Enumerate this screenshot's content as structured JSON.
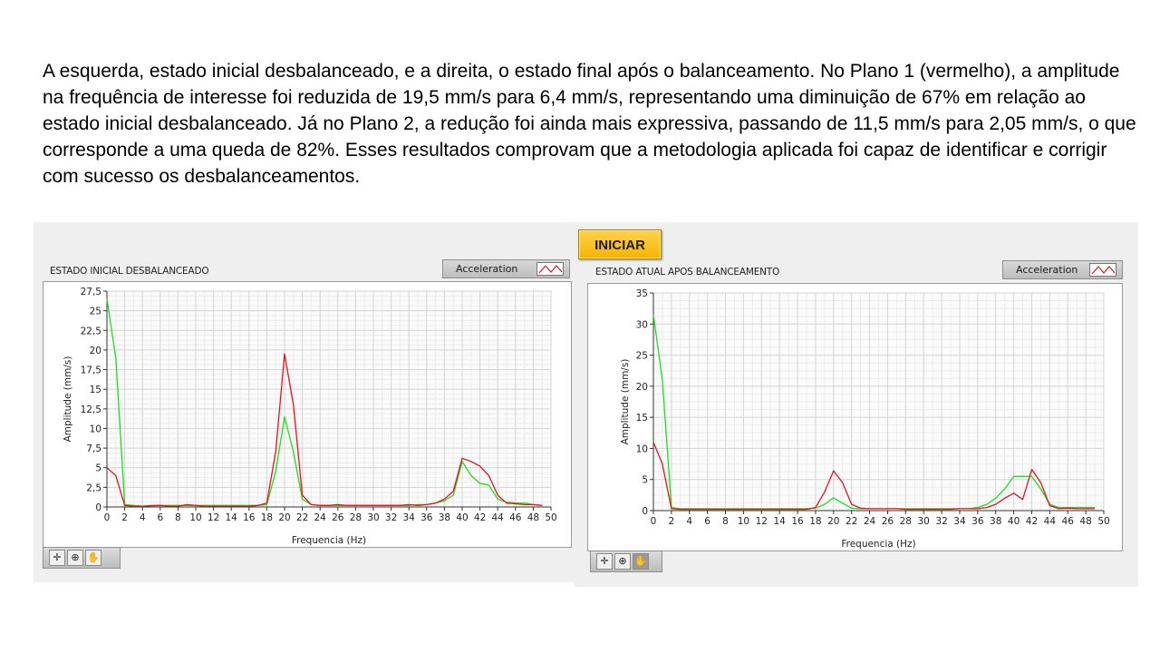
{
  "paragraph": "A esquerda, estado inicial desbalanceado, e a direita, o estado final após o balanceamento. No Plano 1 (vermelho), a amplitude na frequência de interesse foi reduzida de 19,5 mm/s para 6,4 mm/s, representando uma diminuição de 67% em relação ao estado inicial desbalanceado. Já no Plano 2, a redução foi ainda mais expressiva, passando de 11,5 mm/s para 2,05 mm/s, o que corresponde a uma queda de 82%. Esses resultados comprovam que a metodologia aplicada foi capaz de identificar e corrigir com sucesso os desbalanceamentos.",
  "start_button": "INICIAR",
  "left_graph": {
    "title": "ESTADO INICIAL DESBALANCEADO",
    "legend_label": "Acceleration"
  },
  "right_graph": {
    "title": "ESTADO ATUAL APOS BALANCEAMENTO",
    "legend_label": "Acceleration"
  },
  "palette_icons": [
    "crosshair-icon",
    "zoom-icon",
    "pan-hand-icon"
  ],
  "colors": {
    "plane1": "#e8121b",
    "plane2": "#19e019",
    "button": "#f5b400"
  },
  "chart_data": [
    {
      "type": "line",
      "title": "ESTADO INICIAL DESBALANCEADO",
      "xlabel": "Frequencia (Hz)",
      "ylabel": "Amplitude  (mm/s)",
      "xlim": [
        0,
        50
      ],
      "ylim": [
        0,
        27.5
      ],
      "xticks": [
        0,
        2,
        4,
        6,
        8,
        10,
        12,
        14,
        16,
        18,
        20,
        22,
        24,
        26,
        28,
        30,
        32,
        34,
        36,
        38,
        40,
        42,
        44,
        46,
        48,
        50
      ],
      "yticks": [
        0,
        2.5,
        5,
        7.5,
        10,
        12.5,
        15,
        17.5,
        20,
        22.5,
        25,
        27.5
      ],
      "ytick_labels": [
        "0",
        "2,5",
        "5",
        "7,5",
        "10",
        "12,5",
        "15",
        "17,5",
        "20",
        "22,5",
        "25",
        "27,5"
      ],
      "grid": true,
      "legend": "Acceleration",
      "series": [
        {
          "color": "#e8121b",
          "x": [
            0,
            1,
            2,
            3,
            4,
            5,
            6,
            7,
            8,
            9,
            10,
            11,
            12,
            13,
            14,
            15,
            16,
            17,
            18,
            19,
            20,
            21,
            22,
            23,
            24,
            25,
            26,
            27,
            28,
            29,
            30,
            31,
            32,
            33,
            34,
            35,
            36,
            37,
            38,
            39,
            40,
            41,
            42,
            43,
            44,
            45,
            46,
            47,
            48,
            49
          ],
          "y": [
            5,
            4,
            0.2,
            0.1,
            0.1,
            0.15,
            0.2,
            0.1,
            0.1,
            0.3,
            0.2,
            0.1,
            0.1,
            0.1,
            0.1,
            0.1,
            0.1,
            0.2,
            0.5,
            7,
            19.5,
            13,
            1.5,
            0.3,
            0.2,
            0.2,
            0.3,
            0.2,
            0.2,
            0.2,
            0.2,
            0.2,
            0.2,
            0.2,
            0.3,
            0.2,
            0.3,
            0.5,
            1,
            2,
            6.2,
            5.8,
            5.2,
            4,
            1.5,
            0.5,
            0.4,
            0.3,
            0.3,
            0.2
          ]
        },
        {
          "color": "#19e019",
          "x": [
            0,
            1,
            2,
            3,
            4,
            5,
            6,
            7,
            8,
            9,
            10,
            11,
            12,
            13,
            14,
            15,
            16,
            17,
            18,
            19,
            20,
            21,
            22,
            23,
            24,
            25,
            26,
            27,
            28,
            29,
            30,
            31,
            32,
            33,
            34,
            35,
            36,
            37,
            38,
            39,
            40,
            41,
            42,
            43,
            44,
            45,
            46,
            47,
            48,
            49
          ],
          "y": [
            26.5,
            19,
            0.3,
            0.2,
            0.1,
            0.2,
            0.2,
            0.2,
            0.2,
            0.2,
            0.2,
            0.2,
            0.2,
            0.2,
            0.2,
            0.2,
            0.2,
            0.2,
            0.3,
            4.5,
            11.5,
            7,
            1,
            0.3,
            0.2,
            0.2,
            0.2,
            0.2,
            0.2,
            0.2,
            0.2,
            0.2,
            0.2,
            0.2,
            0.2,
            0.3,
            0.3,
            0.5,
            0.8,
            1.5,
            5.8,
            4,
            3,
            2.8,
            1,
            0.6,
            0.5,
            0.5,
            0.3,
            0.2
          ]
        }
      ]
    },
    {
      "type": "line",
      "title": "ESTADO ATUAL APOS BALANCEAMENTO",
      "xlabel": "Frequencia (Hz)",
      "ylabel": "Amplitude  (mm/s)",
      "xlim": [
        0,
        50
      ],
      "ylim": [
        0,
        35
      ],
      "xticks": [
        0,
        2,
        4,
        6,
        8,
        10,
        12,
        14,
        16,
        18,
        20,
        22,
        24,
        26,
        28,
        30,
        32,
        34,
        36,
        38,
        40,
        42,
        44,
        46,
        48,
        50
      ],
      "yticks": [
        0,
        5,
        10,
        15,
        20,
        25,
        30,
        35
      ],
      "ytick_labels": [
        "0",
        "5",
        "10",
        "15",
        "20",
        "25",
        "30",
        "35"
      ],
      "grid": true,
      "legend": "Acceleration",
      "series": [
        {
          "color": "#e8121b",
          "x": [
            0,
            1,
            2,
            3,
            4,
            5,
            6,
            7,
            8,
            9,
            10,
            11,
            12,
            13,
            14,
            15,
            16,
            17,
            18,
            19,
            20,
            21,
            22,
            23,
            24,
            25,
            26,
            27,
            28,
            29,
            30,
            31,
            32,
            33,
            34,
            35,
            36,
            37,
            38,
            39,
            40,
            41,
            42,
            43,
            44,
            45,
            46,
            47,
            48,
            49
          ],
          "y": [
            11,
            7.5,
            0.3,
            0.2,
            0.2,
            0.2,
            0.2,
            0.2,
            0.2,
            0.2,
            0.2,
            0.2,
            0.2,
            0.2,
            0.2,
            0.2,
            0.2,
            0.2,
            0.5,
            3,
            6.4,
            4.5,
            1,
            0.4,
            0.3,
            0.3,
            0.3,
            0.3,
            0.2,
            0.2,
            0.2,
            0.2,
            0.2,
            0.2,
            0.3,
            0.3,
            0.3,
            0.5,
            1,
            2,
            2.8,
            1.8,
            6.6,
            4.5,
            0.8,
            0.3,
            0.4,
            0.3,
            0.3,
            0.3
          ]
        },
        {
          "color": "#19e019",
          "x": [
            0,
            1,
            2,
            3,
            4,
            5,
            6,
            7,
            8,
            9,
            10,
            11,
            12,
            13,
            14,
            15,
            16,
            17,
            18,
            19,
            20,
            21,
            22,
            23,
            24,
            25,
            26,
            27,
            28,
            29,
            30,
            31,
            32,
            33,
            34,
            35,
            36,
            37,
            38,
            39,
            40,
            41,
            42,
            43,
            44,
            45,
            46,
            47,
            48,
            49
          ],
          "y": [
            31.5,
            21,
            0.5,
            0.3,
            0.3,
            0.3,
            0.3,
            0.3,
            0.3,
            0.3,
            0.3,
            0.3,
            0.3,
            0.3,
            0.3,
            0.3,
            0.3,
            0.3,
            0.4,
            1,
            2.05,
            1.2,
            0.4,
            0.3,
            0.3,
            0.3,
            0.3,
            0.3,
            0.3,
            0.3,
            0.3,
            0.3,
            0.3,
            0.3,
            0.3,
            0.3,
            0.5,
            1,
            2,
            3.5,
            5.5,
            5.5,
            5.5,
            3.5,
            1,
            0.5,
            0.5,
            0.5,
            0.5,
            0.5
          ]
        }
      ]
    }
  ]
}
